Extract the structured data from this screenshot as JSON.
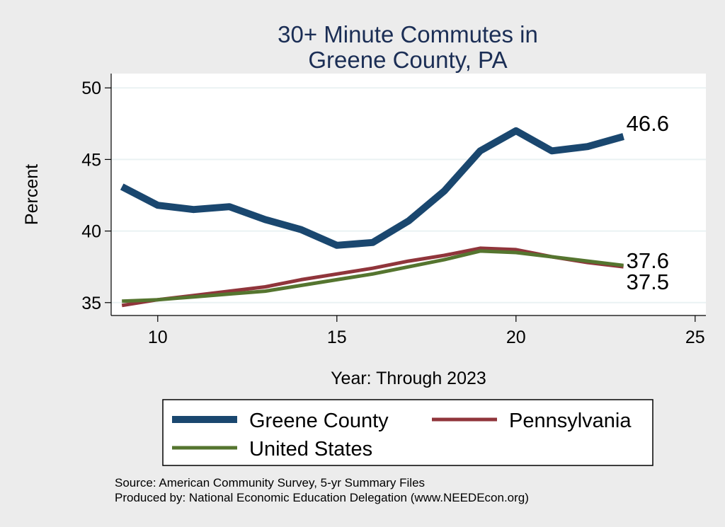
{
  "chart_data": {
    "type": "line",
    "title": [
      "30+ Minute Commutes in",
      "Greene County, PA"
    ],
    "xlabel": "Year: Through 2023",
    "ylabel": "Percent",
    "xlim": [
      8.7,
      25.3
    ],
    "ylim": [
      34.1,
      51.0
    ],
    "xticks": [
      10,
      15,
      20,
      25
    ],
    "yticks": [
      35,
      40,
      45,
      50
    ],
    "grid": true,
    "x": [
      9,
      10,
      11,
      12,
      13,
      14,
      15,
      16,
      17,
      18,
      19,
      20,
      21,
      22,
      23
    ],
    "series": [
      {
        "name": "Greene County",
        "color": "#1a476f",
        "width": 10,
        "values": [
          43.1,
          41.8,
          41.5,
          41.7,
          40.8,
          40.1,
          39.0,
          39.2,
          40.7,
          42.8,
          45.6,
          47.0,
          45.6,
          45.9,
          46.6
        ],
        "end_label": "46.6"
      },
      {
        "name": "Pennsylvania",
        "color": "#90353b",
        "width": 5,
        "values": [
          34.8,
          35.2,
          35.5,
          35.8,
          36.1,
          36.6,
          37.0,
          37.4,
          37.9,
          38.3,
          38.8,
          38.7,
          38.2,
          37.8,
          37.5
        ],
        "end_label": "37.5"
      },
      {
        "name": "United States",
        "color": "#55752f",
        "width": 5,
        "values": [
          35.1,
          35.2,
          35.4,
          35.6,
          35.8,
          36.2,
          36.6,
          37.0,
          37.5,
          38.0,
          38.6,
          38.5,
          38.2,
          37.9,
          37.6
        ],
        "end_label": "37.6"
      }
    ],
    "legend": {
      "position": "bottom",
      "entries": [
        "Greene County",
        "Pennsylvania",
        "United States"
      ]
    },
    "notes": [
      "Source: American Community Survey, 5-yr Summary Files",
      "Produced by: National Economic Education Delegation (www.NEEDEcon.org)"
    ]
  }
}
